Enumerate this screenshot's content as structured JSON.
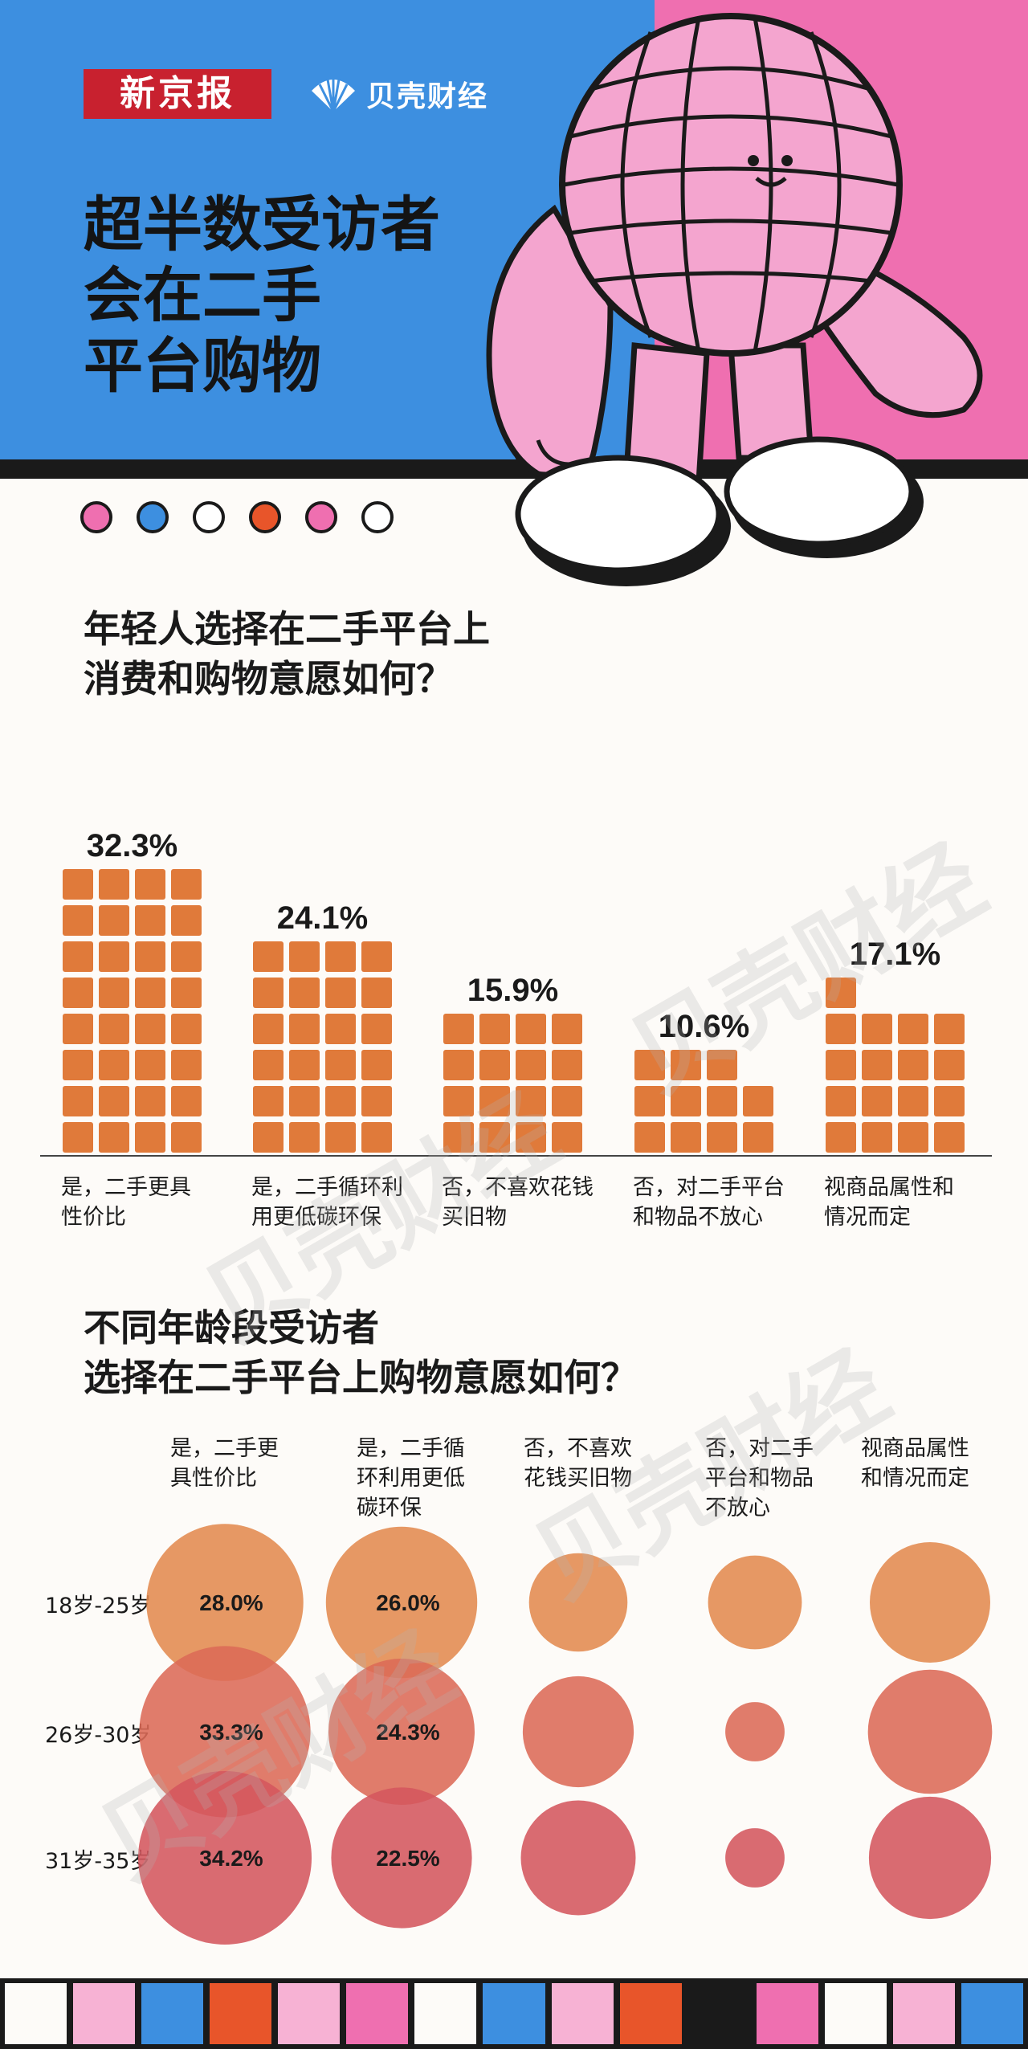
{
  "header": {
    "logo": "新京报",
    "brand2": "贝壳财经",
    "headline": "超半数受访者\n会在二手\n平台购物",
    "colors": {
      "blue": "#3d8fe0",
      "pink": "#ef6fb0",
      "logo_red": "#c8212f"
    },
    "illustration": "pink-globe-mascot-icon"
  },
  "dots": [
    "#ef6fb0",
    "#3d8fe0",
    "#ffffff",
    "#e8552a",
    "#ef6fb0",
    "#ffffff"
  ],
  "watermark": "贝壳财经",
  "chart_data": [
    {
      "type": "bar",
      "title": "年轻人选择在二手平台上\n消费和购物意愿如何？",
      "categories": [
        "是，二手更具\n性价比",
        "是，二手循环利\n用更低碳环保",
        "否，不喜欢花钱\n买旧物",
        "否，对二手平台\n和物品不放心",
        "视商品属性和\n情况而定"
      ],
      "values": [
        32.3,
        24.1,
        15.9,
        10.6,
        17.1
      ],
      "value_labels": [
        "32.3%",
        "24.1%",
        "15.9%",
        "10.6%",
        "17.1%"
      ],
      "unit": "%",
      "bar_color": "#e07a3a"
    },
    {
      "type": "heatmap",
      "title": "不同年龄段受访者\n选择在二手平台上购物意愿如何？",
      "columns": [
        "是，二手更\n具性价比",
        "是，二手循\n环利用更低\n碳环保",
        "否，不喜欢\n花钱买旧物",
        "否，对二手\n平台和物品\n不放心",
        "视商品属性\n和情况而定"
      ],
      "rows": [
        "18岁-25岁",
        "26岁-30岁",
        "31岁-35岁"
      ],
      "values": [
        [
          28.0,
          26.0,
          11.0,
          10.0,
          16.5
        ],
        [
          33.3,
          24.3,
          14.0,
          4.0,
          17.5
        ],
        [
          34.2,
          22.5,
          15.0,
          4.0,
          17.0
        ]
      ],
      "labels": [
        [
          "28.0%",
          "26.0%",
          "",
          "",
          ""
        ],
        [
          "33.3%",
          "24.3%",
          "",
          "",
          ""
        ],
        [
          "34.2%",
          "22.5%",
          "",
          "",
          ""
        ]
      ],
      "row_colors": [
        "#e28a4e",
        "#dc6a56",
        "#d4575d"
      ]
    }
  ],
  "bottom_strip": [
    "#fdfbf8",
    "#f7b2d4",
    "#3d8fe0",
    "#e8552a",
    "#f7b2d4",
    "#ef6fb0",
    "#fdfbf8",
    "#3d8fe0",
    "#f7b2d4",
    "#e8552a",
    "#1a1a1a",
    "#ef6fb0",
    "#fdfbf8",
    "#f7b2d4",
    "#3d8fe0"
  ]
}
